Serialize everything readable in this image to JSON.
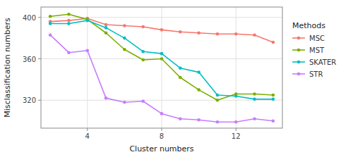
{
  "chart_data": {
    "type": "line",
    "x_label": "Cluster numbers",
    "y_label": "Misclassification numbers",
    "legend_title": "Methods",
    "x": [
      2,
      3,
      4,
      5,
      6,
      7,
      8,
      9,
      10,
      11,
      12,
      13,
      14
    ],
    "series": [
      {
        "name": "MSC",
        "color": "#F8766D",
        "values": [
          396,
          397,
          399,
          393,
          392,
          391,
          388,
          386,
          385,
          384,
          384,
          383,
          376
        ]
      },
      {
        "name": "MST",
        "color": "#7CAE00",
        "values": [
          401,
          403,
          398,
          385,
          369,
          359,
          360,
          342,
          330,
          320,
          326,
          326,
          325
        ]
      },
      {
        "name": "SKATER",
        "color": "#00BFC4",
        "values": [
          394,
          394,
          397,
          390,
          380,
          367,
          365,
          351,
          347,
          325,
          324,
          321,
          321
        ]
      },
      {
        "name": "STR",
        "color": "#C77CFF",
        "values": [
          383,
          366,
          368,
          322,
          318,
          319,
          307,
          302,
          301,
          299,
          299,
          302,
          300
        ]
      }
    ],
    "xlim": [
      1.5,
      14.5
    ],
    "ylim": [
      293,
      410
    ],
    "xticks": [
      4,
      8,
      12
    ],
    "yticks": [
      320,
      360,
      400
    ],
    "grid": true,
    "legend": "right",
    "marker": "circle"
  }
}
